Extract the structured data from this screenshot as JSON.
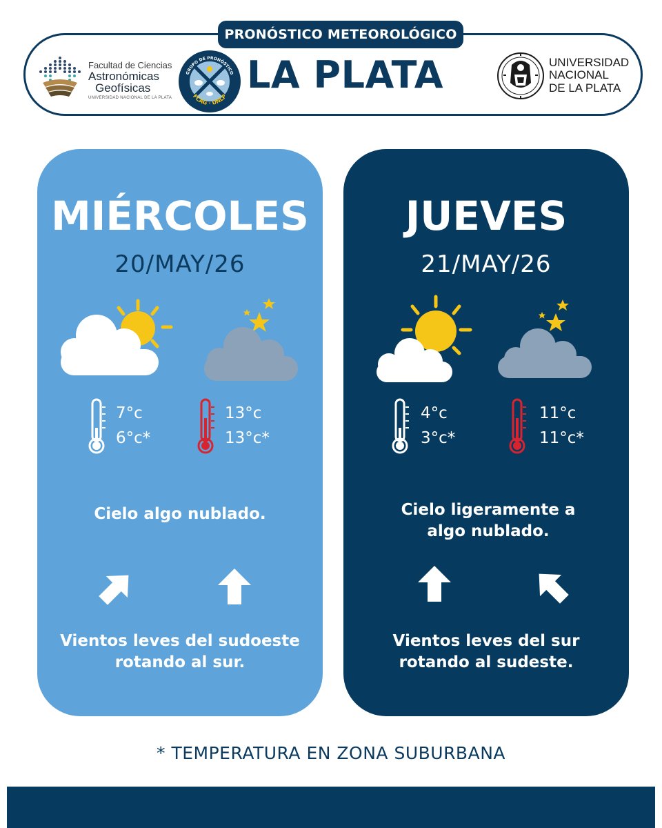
{
  "header": {
    "pill_label": "PRONÓSTICO METEOROLÓGICO",
    "city": "LA PLATA",
    "faculty": {
      "line1": "Facultad de Ciencias",
      "line2": "Astronómicas",
      "line3": "Geofísicas",
      "line4": "UNIVERSIDAD NACIONAL DE LA PLATA"
    },
    "badge": {
      "top_text": "GRUPO DE PRONÓSTICO",
      "bottom_text": "FCAG · UNLP"
    },
    "university": {
      "line1": "UNIVERSIDAD",
      "line2": "NACIONAL",
      "line3": "DE LA PLATA"
    }
  },
  "days": [
    {
      "name": "MIÉRCOLES",
      "date": "20/MAY/26",
      "icon_day": "partly-cloudy-day-icon",
      "icon_night": "cloudy-night-icon",
      "min_temp": "7°c",
      "min_temp_suburban": "6°c*",
      "max_temp": "13°c",
      "max_temp_suburban": "13°c*",
      "sky": "Cielo algo nublado.",
      "wind_arrow_1": "arrow-northeast-icon",
      "wind_arrow_2": "arrow-north-icon",
      "wind": "Vientos leves del sudoeste rotando al sur."
    },
    {
      "name": "JUEVES",
      "date": "21/MAY/26",
      "icon_day": "partly-cloudy-day-icon",
      "icon_night": "cloudy-night-icon",
      "min_temp": "4°c",
      "min_temp_suburban": "3°c*",
      "max_temp": "11°c",
      "max_temp_suburban": "11°c*",
      "sky": "Cielo ligeramente a algo nublado.",
      "wind_arrow_1": "arrow-north-icon",
      "wind_arrow_2": "arrow-northwest-icon",
      "wind": "Vientos leves del sur rotando al sudeste."
    }
  ],
  "footnote": "* TEMPERATURA EN ZONA SUBURBANA",
  "colors": {
    "navy": "#063a5f",
    "light_blue": "#5ea4da",
    "sun": "#f5c518",
    "thermo_red": "#d9232e"
  }
}
